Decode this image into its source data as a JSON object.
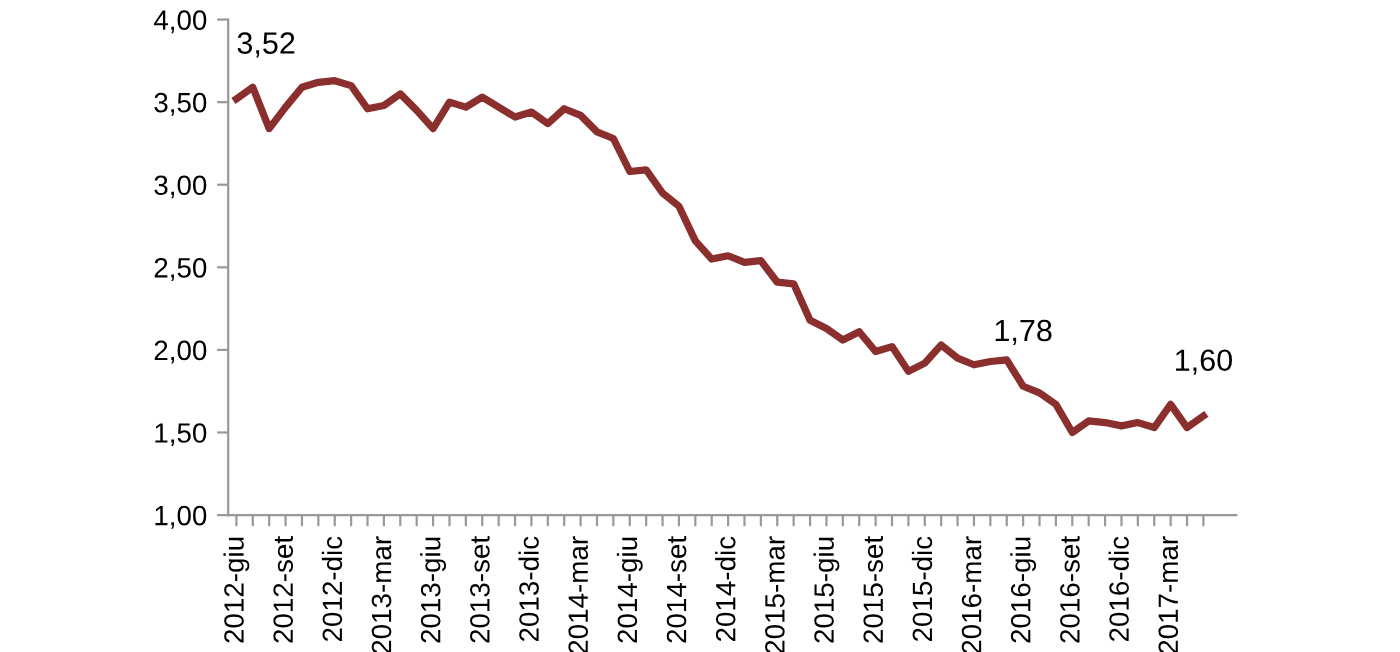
{
  "chart_data": {
    "type": "line",
    "categories": [
      "2012-giu",
      null,
      null,
      "2012-set",
      null,
      null,
      "2012-dic",
      null,
      null,
      "2013-mar",
      null,
      null,
      "2013-giu",
      null,
      null,
      "2013-set",
      null,
      null,
      "2013-dic",
      null,
      null,
      "2014-mar",
      null,
      null,
      "2014-giu",
      null,
      null,
      "2014-set",
      null,
      null,
      "2014-dic",
      null,
      null,
      "2015-mar",
      null,
      null,
      "2015-giu",
      null,
      null,
      "2015-set",
      null,
      null,
      "2015-dic",
      null,
      null,
      "2016-mar",
      null,
      null,
      "2016-giu",
      null,
      null,
      "2016-set",
      null,
      null,
      "2016-dic",
      null,
      null,
      "2017-mar",
      null,
      null
    ],
    "series": [
      {
        "color": "#8b2e2e",
        "values": [
          3.52,
          3.59,
          3.34,
          3.47,
          3.59,
          3.62,
          3.63,
          3.6,
          3.46,
          3.48,
          3.55,
          3.45,
          3.34,
          3.5,
          3.47,
          3.53,
          3.47,
          3.41,
          3.44,
          3.37,
          3.46,
          3.42,
          3.32,
          3.28,
          3.08,
          3.09,
          2.95,
          2.87,
          2.66,
          2.55,
          2.57,
          2.53,
          2.54,
          2.41,
          2.4,
          2.18,
          2.13,
          2.06,
          2.11,
          1.99,
          2.02,
          1.87,
          1.92,
          2.03,
          1.95,
          1.91,
          1.93,
          1.94,
          1.78,
          1.74,
          1.67,
          1.5,
          1.57,
          1.56,
          1.54,
          1.56,
          1.53,
          1.67,
          1.53,
          1.6
        ],
        "value_labels": [
          "3,52",
          null,
          null,
          null,
          null,
          null,
          null,
          null,
          null,
          null,
          null,
          null,
          null,
          null,
          null,
          null,
          null,
          null,
          null,
          null,
          null,
          null,
          null,
          null,
          null,
          null,
          null,
          null,
          null,
          null,
          null,
          null,
          null,
          null,
          null,
          null,
          null,
          null,
          null,
          null,
          null,
          null,
          null,
          null,
          null,
          null,
          null,
          null,
          "1,78",
          null,
          null,
          null,
          null,
          null,
          null,
          null,
          null,
          null,
          null,
          "1,60"
        ]
      }
    ],
    "ylim": [
      1.0,
      4.0
    ],
    "yticks": [
      {
        "value": 1.0,
        "label": "1,00"
      },
      {
        "value": 1.5,
        "label": "1,50"
      },
      {
        "value": 2.0,
        "label": "2,00"
      },
      {
        "value": 2.5,
        "label": "2,50"
      },
      {
        "value": 3.0,
        "label": "3,00"
      },
      {
        "value": 3.5,
        "label": "3,50"
      },
      {
        "value": 4.0,
        "label": "4,00"
      }
    ],
    "grid": false,
    "legend": false,
    "marker": "none",
    "line_style": "solid"
  }
}
